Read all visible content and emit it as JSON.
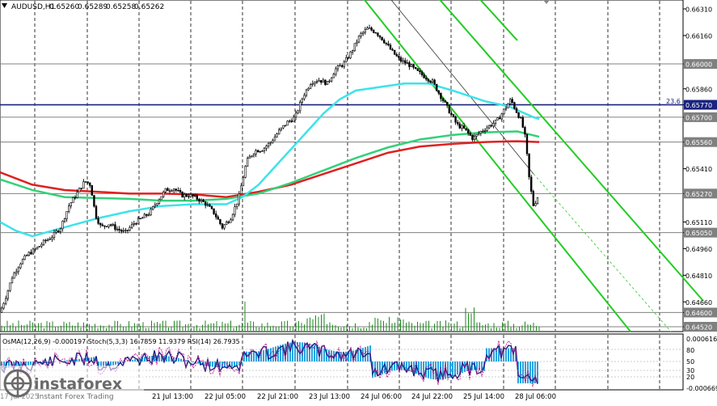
{
  "chart_data": {
    "type": "candlestick",
    "symbol_header": "AUDUSD,H1",
    "ohlc": [
      "0.65260",
      "0.65289",
      "0.65258",
      "0.65262"
    ],
    "price_axis": {
      "min": 0.6452,
      "max": 0.6631,
      "ticks": [
        "0.66310",
        "0.66160",
        "0.66000",
        "0.65860",
        "0.65770",
        "0.65700",
        "0.65560",
        "0.65410",
        "0.65270",
        "0.65110",
        "0.65050",
        "0.64960",
        "0.64810",
        "0.64660",
        "0.64600",
        "0.64520"
      ]
    },
    "level_lines": [
      {
        "price": 0.66,
        "color": "#808080"
      },
      {
        "price": 0.6577,
        "color": "#1a237e",
        "label": "23.6"
      },
      {
        "price": 0.657,
        "color": "#808080"
      },
      {
        "price": 0.6556,
        "color": "#808080"
      },
      {
        "price": 0.6527,
        "color": "#808080"
      },
      {
        "price": 0.6505,
        "color": "#808080"
      },
      {
        "price": 0.646,
        "color": "#808080"
      },
      {
        "price": 0.6452,
        "color": "#808080"
      }
    ],
    "time_labels": [
      "17 Jul 2025",
      "21 Jul 13:00",
      "22 Jul 05:00",
      "22 Jul 21:00",
      "23 Jul 13:00",
      "24 Jul 06:00",
      "24 Jul 22:00",
      "25 Jul 14:00",
      "28 Jul 06:00"
    ],
    "close_path": [
      [
        0,
        0.646
      ],
      [
        8,
        0.647
      ],
      [
        15,
        0.648
      ],
      [
        25,
        0.6488
      ],
      [
        35,
        0.6493
      ],
      [
        45,
        0.6496
      ],
      [
        55,
        0.65
      ],
      [
        65,
        0.6503
      ],
      [
        75,
        0.6508
      ],
      [
        85,
        0.652
      ],
      [
        95,
        0.6527
      ],
      [
        105,
        0.6534
      ],
      [
        112,
        0.6532
      ],
      [
        118,
        0.6515
      ],
      [
        125,
        0.6508
      ],
      [
        135,
        0.651
      ],
      [
        145,
        0.6507
      ],
      [
        155,
        0.6505
      ],
      [
        165,
        0.651
      ],
      [
        175,
        0.6513
      ],
      [
        185,
        0.6516
      ],
      [
        195,
        0.6523
      ],
      [
        205,
        0.6529
      ],
      [
        215,
        0.653
      ],
      [
        225,
        0.6526
      ],
      [
        235,
        0.6526
      ],
      [
        245,
        0.6524
      ],
      [
        255,
        0.6521
      ],
      [
        265,
        0.6516
      ],
      [
        275,
        0.6508
      ],
      [
        285,
        0.6513
      ],
      [
        295,
        0.6524
      ],
      [
        305,
        0.6545
      ],
      [
        315,
        0.6551
      ],
      [
        325,
        0.6552
      ],
      [
        335,
        0.6556
      ],
      [
        345,
        0.6562
      ],
      [
        355,
        0.6567
      ],
      [
        365,
        0.657
      ],
      [
        375,
        0.6582
      ],
      [
        385,
        0.659
      ],
      [
        395,
        0.6591
      ],
      [
        405,
        0.6589
      ],
      [
        415,
        0.6597
      ],
      [
        425,
        0.66
      ],
      [
        435,
        0.6607
      ],
      [
        445,
        0.6616
      ],
      [
        455,
        0.662
      ],
      [
        465,
        0.6618
      ],
      [
        475,
        0.6613
      ],
      [
        485,
        0.6607
      ],
      [
        495,
        0.6602
      ],
      [
        505,
        0.66
      ],
      [
        515,
        0.6596
      ],
      [
        525,
        0.6593
      ],
      [
        535,
        0.659
      ],
      [
        545,
        0.6582
      ],
      [
        555,
        0.6574
      ],
      [
        565,
        0.6566
      ],
      [
        575,
        0.6563
      ],
      [
        585,
        0.6558
      ],
      [
        595,
        0.6562
      ],
      [
        605,
        0.6565
      ],
      [
        615,
        0.6568
      ],
      [
        625,
        0.6575
      ],
      [
        632,
        0.658
      ],
      [
        638,
        0.6574
      ],
      [
        645,
        0.6568
      ],
      [
        650,
        0.6558
      ],
      [
        655,
        0.6534
      ],
      [
        660,
        0.652
      ],
      [
        667,
        0.6527
      ]
    ],
    "ma_series": [
      {
        "color": "#e02020",
        "points": [
          [
            0,
            0.6539
          ],
          [
            40,
            0.6532
          ],
          [
            80,
            0.6529
          ],
          [
            120,
            0.6528
          ],
          [
            160,
            0.6527
          ],
          [
            200,
            0.6527
          ],
          [
            240,
            0.65265
          ],
          [
            280,
            0.6525
          ],
          [
            320,
            0.6528
          ],
          [
            360,
            0.6532
          ],
          [
            400,
            0.6538
          ],
          [
            440,
            0.6544
          ],
          [
            480,
            0.655
          ],
          [
            520,
            0.65535
          ],
          [
            560,
            0.6555
          ],
          [
            600,
            0.6556
          ],
          [
            640,
            0.65565
          ],
          [
            667,
            0.6556
          ]
        ]
      },
      {
        "color": "#33d17a",
        "points": [
          [
            0,
            0.6535
          ],
          [
            40,
            0.6529
          ],
          [
            80,
            0.6525
          ],
          [
            120,
            0.65245
          ],
          [
            160,
            0.6524
          ],
          [
            200,
            0.6523
          ],
          [
            240,
            0.6523
          ],
          [
            280,
            0.6524
          ],
          [
            320,
            0.6527
          ],
          [
            360,
            0.6533
          ],
          [
            400,
            0.654
          ],
          [
            440,
            0.6547
          ],
          [
            480,
            0.6553
          ],
          [
            520,
            0.65575
          ],
          [
            560,
            0.656
          ],
          [
            600,
            0.65615
          ],
          [
            640,
            0.6562
          ],
          [
            667,
            0.6559
          ]
        ]
      },
      {
        "color": "#3ce3ea",
        "points": [
          [
            0,
            0.6511
          ],
          [
            20,
            0.6506
          ],
          [
            40,
            0.6503
          ],
          [
            80,
            0.6508
          ],
          [
            120,
            0.6513
          ],
          [
            160,
            0.6517
          ],
          [
            200,
            0.652
          ],
          [
            240,
            0.6521
          ],
          [
            280,
            0.6521
          ],
          [
            300,
            0.6525
          ],
          [
            320,
            0.6532
          ],
          [
            340,
            0.6542
          ],
          [
            360,
            0.6552
          ],
          [
            380,
            0.6562
          ],
          [
            400,
            0.6572
          ],
          [
            420,
            0.658
          ],
          [
            440,
            0.6585
          ],
          [
            470,
            0.6587
          ],
          [
            500,
            0.6589
          ],
          [
            530,
            0.6589
          ],
          [
            560,
            0.6585
          ],
          [
            600,
            0.6579
          ],
          [
            630,
            0.6576
          ],
          [
            660,
            0.657
          ],
          [
            667,
            0.6569
          ]
        ]
      }
    ],
    "channel_lines": [
      {
        "color": "#22cc22",
        "from": [
          447,
          -5
        ],
        "to": [
          780,
          410
        ]
      },
      {
        "color": "#22cc22",
        "from": [
          540,
          -5
        ],
        "to": [
          870,
          372
        ]
      },
      {
        "color": "#22cc22",
        "from": [
          590,
          -5
        ],
        "to": [
          640,
          50
        ]
      },
      {
        "color": "#333333",
        "from": [
          480,
          -5
        ],
        "to": [
          660,
          215
        ]
      }
    ],
    "fib_label": "23.6",
    "indicators_header": "OsMA(12,26,9) -0.000197  Stoch(5,3,3) 16.7859 11.9379  RSI(14) 26.7935",
    "indicator_axis": [
      "0.000616",
      "80",
      "50",
      "30",
      "20",
      "-0.000669"
    ],
    "watermark": {
      "brand": "instaforex",
      "tagline": "Instant Forex Trading"
    }
  }
}
